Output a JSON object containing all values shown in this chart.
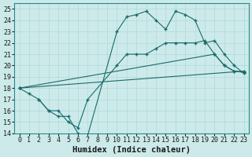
{
  "xlabel": "Humidex (Indice chaleur)",
  "ylabel": "",
  "xlim": [
    -0.5,
    23.5
  ],
  "ylim": [
    14,
    25.5
  ],
  "xticks": [
    0,
    1,
    2,
    3,
    4,
    5,
    6,
    7,
    8,
    9,
    10,
    11,
    12,
    13,
    14,
    15,
    16,
    17,
    18,
    19,
    20,
    21,
    22,
    23
  ],
  "yticks": [
    14,
    15,
    16,
    17,
    18,
    19,
    20,
    21,
    22,
    23,
    24,
    25
  ],
  "background_color": "#cdeaea",
  "line_color": "#1a6b6b",
  "grid_color": "#b0d8d8",
  "lines": [
    {
      "x": [
        0,
        1,
        2,
        3,
        4,
        5,
        6,
        7,
        10,
        11,
        12,
        13,
        14,
        15,
        16,
        17,
        18,
        19,
        20,
        21,
        22,
        23
      ],
      "y": [
        18,
        17.5,
        17,
        16,
        15.5,
        15.5,
        14,
        13.8,
        23,
        24.3,
        24.5,
        24.8,
        24.0,
        23.2,
        24.8,
        24.5,
        24.0,
        22.0,
        22.2,
        21.0,
        20.0,
        19.3
      ]
    },
    {
      "x": [
        0,
        23
      ],
      "y": [
        18,
        19.5
      ]
    },
    {
      "x": [
        0,
        20,
        21,
        22,
        23
      ],
      "y": [
        18,
        21.0,
        20.0,
        19.5,
        19.4
      ]
    },
    {
      "x": [
        2,
        3,
        4,
        5,
        6,
        7,
        10,
        11,
        12,
        13,
        14,
        15,
        16,
        17,
        18,
        19,
        20,
        21,
        22,
        23
      ],
      "y": [
        17,
        16,
        16,
        15,
        14.5,
        17,
        20,
        21,
        21,
        21,
        21.5,
        22,
        22,
        22,
        22,
        22.2,
        21,
        20,
        19.5,
        19.4
      ]
    }
  ],
  "font_family": "monospace",
  "tick_fontsize": 6,
  "label_fontsize": 7.5
}
